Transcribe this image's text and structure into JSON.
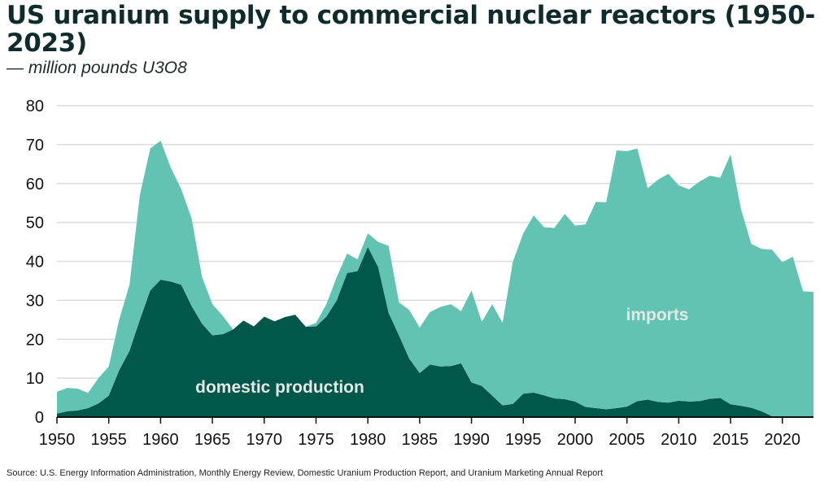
{
  "title": "US uranium supply to commercial nuclear reactors (1950-2023)",
  "subtitle": "— million pounds U3O8",
  "source": "Source: U.S. Energy Information Administration, Monthly Energy Review, Domestic Uranium Production Report, and Uranium Marketing Annual Report",
  "chart_data": {
    "type": "area",
    "stacked": true,
    "title": "US uranium supply to commercial nuclear reactors (1950-2023)",
    "ylabel": "— million pounds U3O8",
    "xlim": [
      1950,
      2023
    ],
    "ylim": [
      0,
      80
    ],
    "grid": true,
    "xticks": [
      "1950",
      "1955",
      "1960",
      "1965",
      "1970",
      "1975",
      "1980",
      "1985",
      "1990",
      "1995",
      "2000",
      "2005",
      "2010",
      "2015",
      "2020"
    ],
    "yticks": [
      "0",
      "10",
      "20",
      "30",
      "40",
      "50",
      "60",
      "70",
      "80"
    ],
    "x": [
      1950,
      1951,
      1952,
      1953,
      1954,
      1955,
      1956,
      1957,
      1958,
      1959,
      1960,
      1961,
      1962,
      1963,
      1964,
      1965,
      1966,
      1967,
      1968,
      1969,
      1970,
      1971,
      1972,
      1973,
      1974,
      1975,
      1976,
      1977,
      1978,
      1979,
      1980,
      1981,
      1982,
      1983,
      1984,
      1985,
      1986,
      1987,
      1988,
      1989,
      1990,
      1991,
      1992,
      1993,
      1994,
      1995,
      1996,
      1997,
      1998,
      1999,
      2000,
      2001,
      2002,
      2003,
      2004,
      2005,
      2006,
      2007,
      2008,
      2009,
      2010,
      2011,
      2012,
      2013,
      2014,
      2015,
      2016,
      2017,
      2018,
      2019,
      2020,
      2021,
      2022,
      2023
    ],
    "series": [
      {
        "name": "domestic production",
        "color": "#02574b",
        "values": [
          0.9,
          1.5,
          1.7,
          2.3,
          3.5,
          5.5,
          12,
          17,
          25,
          32.5,
          35.3,
          34.8,
          34,
          28.5,
          24,
          21,
          21.3,
          22.5,
          24.8,
          23.3,
          25.8,
          24.6,
          25.7,
          26.3,
          23.2,
          23.3,
          25.8,
          30,
          37,
          37.5,
          43.7,
          38.5,
          26.8,
          21,
          15,
          11.3,
          13.5,
          13,
          13.1,
          13.8,
          8.9,
          8,
          5.5,
          3,
          3.4,
          6,
          6.3,
          5.6,
          4.8,
          4.6,
          4,
          2.6,
          2.3,
          2,
          2.3,
          2.7,
          4.1,
          4.5,
          3.9,
          3.7,
          4.2,
          4,
          4.1,
          4.7,
          4.9,
          3.3,
          2.9,
          2.4,
          1.5,
          0.2,
          0,
          0,
          0.2,
          0.1
        ]
      },
      {
        "name": "imports",
        "color": "#62c3b3",
        "values": [
          5.6,
          6,
          5.6,
          3.9,
          6.5,
          7.5,
          13,
          17,
          32,
          36.5,
          35.7,
          29.2,
          24.5,
          22.5,
          12,
          8,
          4.7,
          0,
          0,
          0,
          0,
          0,
          0,
          0,
          0,
          0.9,
          3.2,
          6,
          5,
          3,
          3.5,
          6.5,
          17.2,
          8.5,
          12.5,
          11.7,
          13.5,
          15.3,
          15.9,
          13.4,
          23.6,
          16.5,
          23.5,
          21.2,
          36.6,
          41.2,
          45.5,
          43.2,
          43.8,
          47.6,
          45.2,
          46.9,
          53,
          53.2,
          66.2,
          65.6,
          64.9,
          54.3,
          57.1,
          58.8,
          55.3,
          54.5,
          56.4,
          57.3,
          56.6,
          64.2,
          50.6,
          42.1,
          41.7,
          42.8,
          39.8,
          41.2,
          32.1,
          32.1
        ]
      }
    ]
  }
}
